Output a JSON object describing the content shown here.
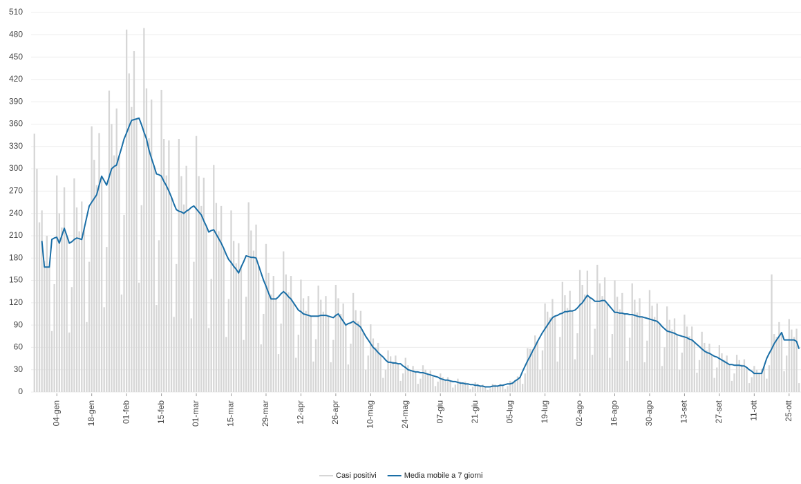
{
  "chart_data": {
    "type": "bar",
    "categories": [
      null,
      null,
      null,
      null,
      null,
      null,
      null,
      null,
      null,
      "04-gen",
      null,
      null,
      null,
      null,
      null,
      null,
      null,
      null,
      null,
      null,
      null,
      null,
      null,
      "18-gen",
      null,
      null,
      null,
      null,
      null,
      null,
      null,
      null,
      null,
      null,
      null,
      null,
      null,
      "01-feb",
      null,
      null,
      null,
      null,
      null,
      null,
      null,
      null,
      null,
      null,
      null,
      null,
      null,
      "15-feb",
      null,
      null,
      null,
      null,
      null,
      null,
      null,
      null,
      null,
      null,
      null,
      null,
      null,
      "01-mar",
      null,
      null,
      null,
      null,
      null,
      null,
      null,
      null,
      null,
      null,
      null,
      null,
      null,
      "15-mar",
      null,
      null,
      null,
      null,
      null,
      null,
      null,
      null,
      null,
      null,
      null,
      null,
      null,
      "29-mar",
      null,
      null,
      null,
      null,
      null,
      null,
      null,
      null,
      null,
      null,
      null,
      null,
      null,
      "12-apr",
      null,
      null,
      null,
      null,
      null,
      null,
      null,
      null,
      null,
      null,
      null,
      null,
      null,
      "26-apr",
      null,
      null,
      null,
      null,
      null,
      null,
      null,
      null,
      null,
      null,
      null,
      null,
      null,
      "10-mag",
      null,
      null,
      null,
      null,
      null,
      null,
      null,
      null,
      null,
      null,
      null,
      null,
      null,
      "24-mag",
      null,
      null,
      null,
      null,
      null,
      null,
      null,
      null,
      null,
      null,
      null,
      null,
      null,
      "07-giu",
      null,
      null,
      null,
      null,
      null,
      null,
      null,
      null,
      null,
      null,
      null,
      null,
      null,
      "21-giu",
      null,
      null,
      null,
      null,
      null,
      null,
      null,
      null,
      null,
      null,
      null,
      null,
      null,
      "05-lug",
      null,
      null,
      null,
      null,
      null,
      null,
      null,
      null,
      null,
      null,
      null,
      null,
      null,
      "19-lug",
      null,
      null,
      null,
      null,
      null,
      null,
      null,
      null,
      null,
      null,
      null,
      null,
      null,
      "02-ago",
      null,
      null,
      null,
      null,
      null,
      null,
      null,
      null,
      null,
      null,
      null,
      null,
      null,
      "16-ago",
      null,
      null,
      null,
      null,
      null,
      null,
      null,
      null,
      null,
      null,
      null,
      null,
      null,
      "30-ago",
      null,
      null,
      null,
      null,
      null,
      null,
      null,
      null,
      null,
      null,
      null,
      null,
      null,
      "13-set",
      null,
      null,
      null,
      null,
      null,
      null,
      null,
      null,
      null,
      null,
      null,
      null,
      null,
      "27-set",
      null,
      null,
      null,
      null,
      null,
      null,
      null,
      null,
      null,
      null,
      null,
      null,
      null,
      "11-ott",
      null,
      null,
      null,
      null,
      null,
      null,
      null,
      null,
      null,
      null,
      null,
      null,
      null,
      "25-ott",
      null,
      null,
      null,
      null
    ],
    "series": [
      {
        "name": "Casi positivi",
        "type": "bar",
        "color": "#d6d6d6",
        "values": [
          347,
          300,
          228,
          244,
          176,
          210,
          168,
          82,
          145,
          291,
          240,
          221,
          275,
          210,
          80,
          141,
          287,
          248,
          216,
          256,
          220,
          94,
          175,
          357,
          312,
          278,
          348,
          290,
          114,
          195,
          405,
          360,
          318,
          381,
          317,
          131,
          238,
          487,
          428,
          383,
          458,
          367,
          147,
          251,
          489,
          408,
          341,
          393,
          304,
          117,
          204,
          406,
          340,
          291,
          338,
          262,
          101,
          172,
          340,
          290,
          252,
          304,
          245,
          99,
          175,
          344,
          290,
          250,
          288,
          223,
          86,
          152,
          305,
          254,
          216,
          250,
          193,
          74,
          125,
          244,
          203,
          173,
          200,
          168,
          70,
          128,
          255,
          217,
          190,
          225,
          170,
          64,
          105,
          199,
          160,
          131,
          156,
          125,
          51,
          92,
          189,
          158,
          134,
          156,
          120,
          46,
          77,
          151,
          126,
          109,
          129,
          102,
          41,
          71,
          143,
          124,
          108,
          129,
          102,
          40,
          70,
          144,
          126,
          105,
          119,
          90,
          37,
          65,
          133,
          110,
          95,
          109,
          81,
          30,
          49,
          91,
          72,
          60,
          66,
          50,
          19,
          30,
          56,
          48,
          41,
          49,
          38,
          15,
          25,
          46,
          36,
          30,
          35,
          27,
          11,
          18,
          36,
          30,
          25,
          29,
          22,
          8,
          14,
          25,
          20,
          17,
          20,
          15,
          6,
          10,
          18,
          14,
          13,
          14,
          11,
          4,
          7,
          13,
          11,
          8,
          10,
          7,
          3,
          5,
          11,
          10,
          8,
          11,
          9,
          4,
          8,
          15,
          14,
          16,
          21,
          20,
          11,
          25,
          59,
          58,
          58,
          76,
          68,
          30,
          56,
          119,
          108,
          100,
          125,
          102,
          41,
          74,
          148,
          130,
          113,
          136,
          109,
          44,
          79,
          164,
          144,
          131,
          163,
          127,
          50,
          85,
          171,
          146,
          129,
          154,
          119,
          46,
          78,
          150,
          128,
          111,
          133,
          105,
          42,
          73,
          146,
          124,
          107,
          126,
          101,
          40,
          69,
          137,
          116,
          101,
          119,
          92,
          35,
          60,
          115,
          97,
          84,
          99,
          77,
          30,
          53,
          104,
          88,
          75,
          88,
          67,
          26,
          43,
          81,
          66,
          56,
          65,
          50,
          19,
          33,
          63,
          52,
          43,
          49,
          37,
          15,
          25,
          50,
          43,
          37,
          44,
          33,
          12,
          20,
          35,
          30,
          26,
          31,
          35,
          18,
          36,
          158,
          78,
          74,
          94,
          80,
          28,
          49,
          98,
          84,
          74,
          85,
          12
        ]
      },
      {
        "name": "Media mobile a 7 giorni",
        "type": "line",
        "color": "#1a6ea6",
        "values": [
          null,
          null,
          null,
          203,
          168,
          168,
          168,
          205,
          207,
          208,
          200,
          210,
          220,
          210,
          200,
          202,
          205,
          207,
          206,
          205,
          220,
          235,
          250,
          255,
          260,
          265,
          278,
          290,
          284,
          278,
          289,
          300,
          303,
          305,
          317,
          328,
          340,
          348,
          357,
          365,
          366,
          367,
          368,
          359,
          349,
          340,
          325,
          314,
          304,
          293,
          292,
          290,
          283,
          277,
          270,
          262,
          253,
          245,
          243,
          242,
          240,
          243,
          245,
          248,
          250,
          246,
          242,
          238,
          230,
          223,
          215,
          217,
          218,
          212,
          206,
          200,
          193,
          185,
          178,
          174,
          169,
          165,
          160,
          168,
          175,
          183,
          182,
          181,
          181,
          180,
          170,
          160,
          150,
          142,
          133,
          125,
          125,
          125,
          128,
          132,
          135,
          132,
          128,
          125,
          120,
          115,
          110,
          108,
          105,
          104,
          103,
          102,
          102,
          102,
          102,
          103,
          103,
          103,
          102,
          101,
          100,
          103,
          105,
          100,
          95,
          90,
          92,
          93,
          95,
          92,
          90,
          87,
          81,
          75,
          70,
          65,
          60,
          57,
          53,
          50,
          47,
          43,
          40,
          40,
          39,
          39,
          38,
          38,
          35,
          33,
          30,
          29,
          28,
          27,
          27,
          26,
          26,
          25,
          24,
          23,
          22,
          21,
          20,
          18,
          17,
          16,
          16,
          15,
          14,
          14,
          13,
          12,
          12,
          11,
          11,
          10,
          10,
          9,
          9,
          8,
          8,
          7,
          7,
          7,
          8,
          8,
          8,
          9,
          9,
          10,
          11,
          11,
          12,
          15,
          17,
          20,
          28,
          35,
          42,
          48,
          55,
          61,
          68,
          74,
          80,
          85,
          90,
          95,
          100,
          102,
          103,
          105,
          106,
          108,
          108,
          109,
          109,
          110,
          113,
          117,
          120,
          125,
          130,
          127,
          125,
          122,
          122,
          122,
          123,
          123,
          119,
          115,
          111,
          107,
          107,
          106,
          106,
          105,
          105,
          104,
          104,
          103,
          102,
          101,
          101,
          100,
          99,
          98,
          97,
          96,
          95,
          92,
          88,
          85,
          82,
          81,
          80,
          79,
          77,
          76,
          75,
          74,
          73,
          71,
          70,
          67,
          64,
          61,
          58,
          55,
          53,
          52,
          50,
          48,
          47,
          45,
          43,
          41,
          39,
          37,
          37,
          36,
          36,
          36,
          35,
          35,
          33,
          30,
          28,
          25,
          25,
          25,
          25,
          35,
          45,
          52,
          58,
          65,
          70,
          75,
          80,
          70,
          70,
          70,
          70,
          70,
          68,
          58
        ]
      }
    ],
    "ylim": [
      0,
      510
    ],
    "yticks": [
      0,
      30,
      60,
      90,
      120,
      150,
      180,
      210,
      240,
      270,
      300,
      330,
      360,
      390,
      420,
      450,
      480,
      510
    ],
    "grid": true,
    "legend": "bottom"
  }
}
